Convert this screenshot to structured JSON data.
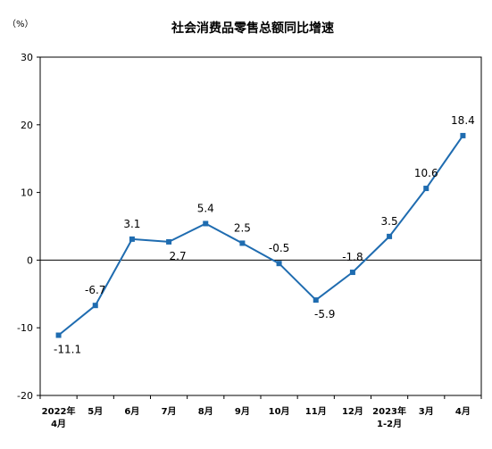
{
  "chart_data": {
    "type": "line",
    "title": "社会消费品零售总额同比增速",
    "unit_label": "（%）",
    "categories": [
      [
        "2022年",
        "4月"
      ],
      [
        "5月"
      ],
      [
        "6月"
      ],
      [
        "7月"
      ],
      [
        "8月"
      ],
      [
        "9月"
      ],
      [
        "10月"
      ],
      [
        "11月"
      ],
      [
        "12月"
      ],
      [
        "2023年",
        "1-2月"
      ],
      [
        "3月"
      ],
      [
        "4月"
      ]
    ],
    "series": [
      {
        "values": [
          -11.1,
          -6.7,
          3.1,
          2.7,
          5.4,
          2.5,
          -0.5,
          -5.9,
          -1.8,
          3.5,
          10.6,
          18.4
        ],
        "data_labels": [
          "-11.1",
          "-6.7",
          "3.1",
          "2.7",
          "5.4",
          "2.5",
          "-0.5",
          "-5.9",
          "-1.8",
          "3.5",
          "10.6",
          "18.4"
        ],
        "color": "#1f6cb0"
      }
    ],
    "ylim": [
      -20,
      30
    ],
    "yticks": [
      -20,
      -10,
      0,
      10,
      20,
      30
    ],
    "grid": false,
    "legend": "none"
  }
}
